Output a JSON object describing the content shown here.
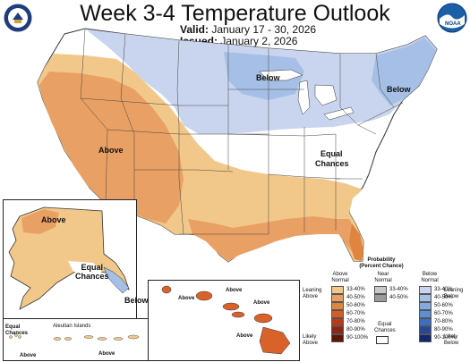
{
  "header": {
    "title": "Week 3-4 Temperature Outlook",
    "valid_label": "Valid:",
    "valid_value": "January 17 - 30, 2026",
    "issued_label": "Issued:",
    "issued_value": "January 2, 2026"
  },
  "logos": {
    "left": "department-of-commerce-seal",
    "right": "noaa-logo",
    "right_text": "NOAA"
  },
  "map_labels": {
    "above": "Above",
    "below_north": "Below",
    "below_east": "Below",
    "equal_chances": "Equal\nChances",
    "alaska_above": "Above",
    "alaska_equal": "Equal\nChances",
    "alaska_below": "Below",
    "hawaii_above_1": "Above",
    "hawaii_above_2": "Above",
    "hawaii_above_3": "Above",
    "hawaii_above_4": "Above",
    "aleutian_title": "Aleutian Islands",
    "aleutian_equal": "Equal\nChances",
    "aleutian_above_1": "Above",
    "aleutian_above_2": "Above"
  },
  "legend": {
    "title": "Probability\n(Percent Chance)",
    "above_header": "Above\nNormal",
    "near_header": "Near\nNormal",
    "below_header": "Below\nNormal",
    "above_ranges": [
      "33-40%",
      "40-50%",
      "50-60%",
      "60-70%",
      "70-80%",
      "80-90%",
      "90-100%"
    ],
    "near_ranges": [
      "33-40%",
      "40-50%"
    ],
    "below_ranges": [
      "33-40%",
      "40-50%",
      "50-60%",
      "60-70%",
      "70-80%",
      "80-90%",
      "90-100%"
    ],
    "leaning_above": "Leaning\nAbove",
    "likely_above": "Likely\nAbove",
    "equal_chances": "Equal\nChances",
    "leaning_below": "Leaning\nBelow",
    "likely_below": "Likely\nBelow"
  },
  "colors": {
    "above_33_40": "#f2c88a",
    "above_40_50": "#e9a064",
    "above_50_60": "#e0853f",
    "above_60_70": "#d45d27",
    "above_70_80": "#b93a1b",
    "above_80_90": "#8e2412",
    "above_90_100": "#5e1409",
    "below_33_40": "#c9d5ee",
    "below_40_50": "#a6bfe6",
    "below_50_60": "#83a9df",
    "below_60_70": "#5c8fd3",
    "below_70_80": "#3d6fc0",
    "below_80_90": "#24499a",
    "below_90_100": "#13276b",
    "near_33_40": "#c8c8c8",
    "near_40_50": "#9a9a9a",
    "equal": "#ffffff",
    "hawaii": "#d9622b"
  }
}
